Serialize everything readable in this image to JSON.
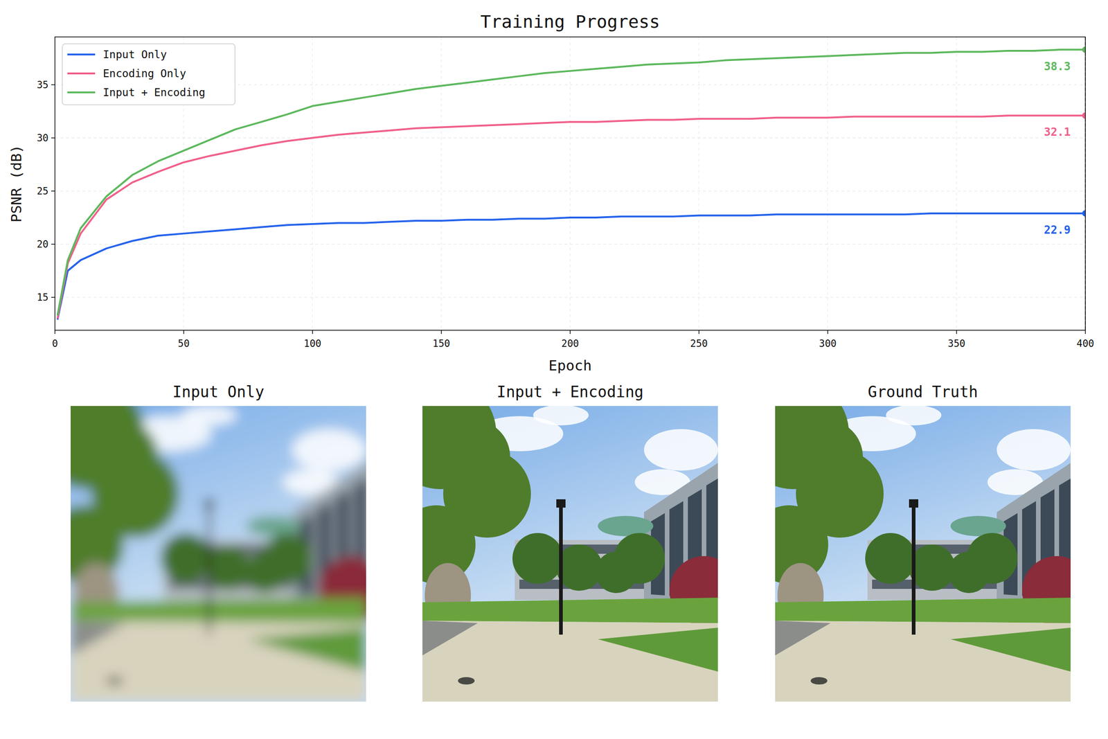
{
  "chart_data": {
    "type": "line",
    "title": "Training Progress",
    "x_label": "Epoch",
    "y_label": "PSNR (dB)",
    "x": [
      1,
      5,
      10,
      20,
      30,
      40,
      50,
      60,
      70,
      80,
      90,
      100,
      110,
      120,
      130,
      140,
      150,
      160,
      170,
      180,
      190,
      200,
      210,
      220,
      230,
      240,
      250,
      260,
      270,
      280,
      290,
      300,
      310,
      320,
      330,
      340,
      350,
      360,
      370,
      380,
      390,
      400
    ],
    "xlim": [
      0,
      400
    ],
    "xticks": [
      0,
      50,
      100,
      150,
      200,
      250,
      300,
      350,
      400
    ],
    "ylim": [
      11.9,
      39.5
    ],
    "yticks": [
      15,
      20,
      25,
      30,
      35
    ],
    "grid": true,
    "legend": "upper-left",
    "series": [
      {
        "name": "Input Only",
        "color": "#2563eb",
        "values": [
          12.9,
          17.5,
          18.5,
          19.6,
          20.3,
          20.8,
          21.0,
          21.2,
          21.4,
          21.6,
          21.8,
          21.9,
          22.0,
          22.0,
          22.1,
          22.2,
          22.2,
          22.3,
          22.3,
          22.4,
          22.4,
          22.5,
          22.5,
          22.6,
          22.6,
          22.6,
          22.7,
          22.7,
          22.7,
          22.8,
          22.8,
          22.8,
          22.8,
          22.8,
          22.8,
          22.9,
          22.9,
          22.9,
          22.9,
          22.9,
          22.9,
          22.9
        ]
      },
      {
        "name": "Encoding Only",
        "color": "#f0608a",
        "values": [
          13.0,
          18.2,
          21.0,
          24.2,
          25.8,
          26.8,
          27.7,
          28.3,
          28.8,
          29.3,
          29.7,
          30.0,
          30.3,
          30.5,
          30.7,
          30.9,
          31.0,
          31.1,
          31.2,
          31.3,
          31.4,
          31.5,
          31.5,
          31.6,
          31.7,
          31.7,
          31.8,
          31.8,
          31.8,
          31.9,
          31.9,
          31.9,
          32.0,
          32.0,
          32.0,
          32.0,
          32.0,
          32.0,
          32.1,
          32.1,
          32.1,
          32.1
        ]
      },
      {
        "name": "Input + Encoding",
        "color": "#5cb85c",
        "values": [
          13.3,
          18.5,
          21.5,
          24.5,
          26.5,
          27.8,
          28.8,
          29.8,
          30.8,
          31.5,
          32.2,
          33.0,
          33.4,
          33.8,
          34.2,
          34.6,
          34.9,
          35.2,
          35.5,
          35.8,
          36.1,
          36.3,
          36.5,
          36.7,
          36.9,
          37.0,
          37.1,
          37.3,
          37.4,
          37.5,
          37.6,
          37.7,
          37.8,
          37.9,
          38.0,
          38.0,
          38.1,
          38.1,
          38.2,
          38.2,
          38.3,
          38.3
        ]
      }
    ],
    "vline": 400,
    "annotations": [
      {
        "text": "38.3",
        "x": 400,
        "y": 38.3,
        "color": "#5cb85c"
      },
      {
        "text": "32.1",
        "x": 400,
        "y": 32.1,
        "color": "#f0608a"
      },
      {
        "text": "22.9",
        "x": 400,
        "y": 22.9,
        "color": "#2563eb"
      }
    ]
  },
  "panels": [
    {
      "title": "Input Only"
    },
    {
      "title": "Input + Encoding"
    },
    {
      "title": "Ground Truth"
    }
  ]
}
